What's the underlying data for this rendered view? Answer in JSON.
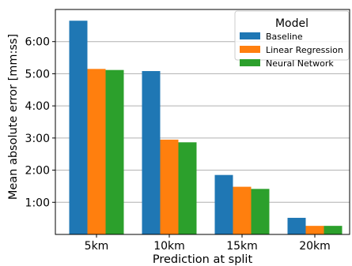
{
  "chart_data": {
    "type": "bar",
    "xlabel": "Prediction at split",
    "ylabel": "Mean absolute error [mm:ss]",
    "categories": [
      "5km",
      "10km",
      "15km",
      "20km"
    ],
    "y_unit": "seconds",
    "ylim": [
      0,
      420
    ],
    "y_ticks": [
      60,
      120,
      180,
      240,
      300,
      360
    ],
    "y_tick_labels": [
      "1:00",
      "2:00",
      "3:00",
      "4:00",
      "5:00",
      "6:00"
    ],
    "grid": "horizontal",
    "legend": {
      "title": "Model",
      "placement": "top-right"
    },
    "series": [
      {
        "name": "Baseline",
        "color": "#1f77b4",
        "values": [
          399,
          305,
          111,
          31
        ]
      },
      {
        "name": "Linear Regression",
        "color": "#ff7f0e",
        "values": [
          309,
          177,
          89,
          16
        ]
      },
      {
        "name": "Neural Network",
        "color": "#2ca02c",
        "values": [
          307,
          172,
          85,
          16
        ]
      }
    ]
  }
}
